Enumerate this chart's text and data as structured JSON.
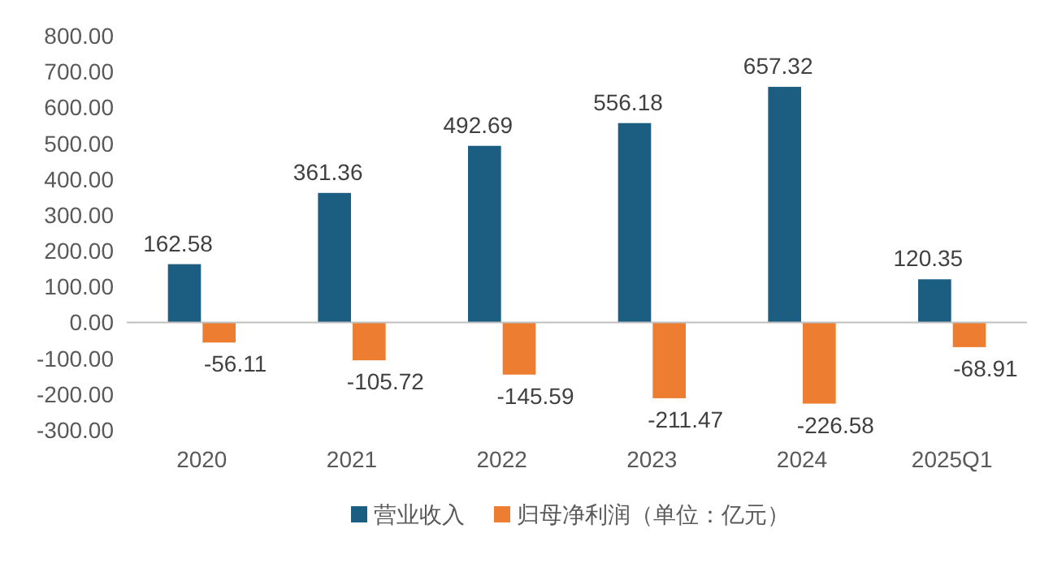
{
  "chart_data": {
    "type": "bar",
    "categories": [
      "2020",
      "2021",
      "2022",
      "2023",
      "2024",
      "2025Q1"
    ],
    "series": [
      {
        "name": "营业收入",
        "color": "#1b5e82",
        "values": [
          162.58,
          361.36,
          492.69,
          556.18,
          657.32,
          120.35
        ]
      },
      {
        "name": "归母净利润（单位：亿元）",
        "color": "#ed7d31",
        "values": [
          -56.11,
          -105.72,
          -145.59,
          -211.47,
          -226.58,
          -68.91
        ]
      }
    ],
    "ylim": [
      -300,
      800
    ],
    "yticks": [
      {
        "value": -300,
        "label": "-300.00"
      },
      {
        "value": -200,
        "label": "-200.00"
      },
      {
        "value": -100,
        "label": "-100.00"
      },
      {
        "value": 0,
        "label": "0.00"
      },
      {
        "value": 100,
        "label": "100.00"
      },
      {
        "value": 200,
        "label": "200.00"
      },
      {
        "value": 300,
        "label": "300.00"
      },
      {
        "value": 400,
        "label": "400.00"
      },
      {
        "value": 500,
        "label": "500.00"
      },
      {
        "value": 600,
        "label": "600.00"
      },
      {
        "value": 700,
        "label": "700.00"
      },
      {
        "value": 800,
        "label": "800.00"
      }
    ],
    "data_labels": true,
    "legend": "bottom"
  }
}
